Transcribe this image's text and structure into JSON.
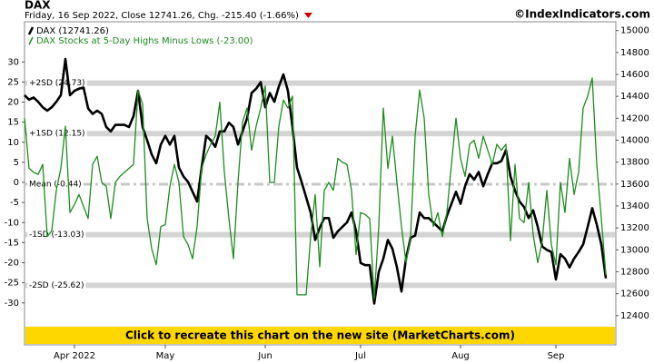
{
  "chart_data": {
    "type": "line",
    "title": "DAX",
    "subtitle": "Friday, 16 Sep 2022, Close 12741.26, Chg. -215.40 (-1.66%)",
    "source": "©IndexIndicators.com",
    "annotation": "Click to recreate this chart on the new site (MarketCharts.com)",
    "categories": [
      null,
      null,
      null,
      null,
      null,
      null,
      null,
      null,
      null,
      null,
      null,
      "Apr 2022",
      null,
      null,
      null,
      null,
      null,
      null,
      null,
      null,
      null,
      null,
      null,
      null,
      null,
      null,
      null,
      null,
      null,
      null,
      null,
      "May",
      null,
      null,
      null,
      null,
      null,
      null,
      null,
      null,
      null,
      null,
      null,
      null,
      null,
      null,
      null,
      null,
      null,
      null,
      null,
      null,
      null,
      "Jun",
      null,
      null,
      null,
      null,
      null,
      null,
      null,
      null,
      null,
      null,
      null,
      null,
      null,
      null,
      null,
      null,
      null,
      null,
      null,
      null,
      "Jul",
      null,
      null,
      null,
      null,
      null,
      null,
      null,
      null,
      null,
      null,
      null,
      null,
      null,
      null,
      null,
      null,
      null,
      null,
      null,
      null,
      null,
      "Aug",
      null,
      null,
      null,
      null,
      null,
      null,
      null,
      null,
      null,
      null,
      null,
      null,
      null,
      null,
      null,
      null,
      null,
      null,
      null,
      null,
      "Sep",
      null,
      null,
      null,
      null,
      null,
      null,
      null,
      null,
      null,
      null,
      null
    ],
    "series": [
      {
        "name": "DAX Stocks at 5-Day Highs Minus Lows (-23.00)",
        "color": "#1e8c1e",
        "axis": "y",
        "values": [
          16,
          3.5,
          2.5,
          2,
          4.5,
          -13.5,
          -12,
          -2,
          3.5,
          14,
          -7.5,
          -5.5,
          -3,
          -6,
          -9,
          4.5,
          6.5,
          0,
          -1,
          -9,
          0,
          1.5,
          2.5,
          3.5,
          4.5,
          23,
          19.5,
          -9,
          -16.5,
          -20.5,
          -11,
          -10.5,
          -1,
          4.5,
          0,
          -13.5,
          -15.5,
          -19,
          -11,
          3.5,
          7,
          9.5,
          11.5,
          20,
          2.5,
          -9,
          -19,
          0,
          15,
          18.5,
          8,
          14,
          18.5,
          24,
          0,
          0,
          14,
          20.5,
          18.5,
          21.5,
          -28,
          -28,
          -28,
          -13.5,
          -3,
          -21,
          -2,
          0,
          -2,
          6,
          5,
          4.5,
          -2,
          -18,
          -7.5,
          -8,
          -9,
          -29,
          -11,
          18.5,
          3.5,
          11.5,
          0,
          -11,
          -20,
          -13.5,
          11.5,
          23,
          16,
          -3,
          -11,
          -7.5,
          -13.5,
          -7.5,
          4.5,
          16,
          6,
          1.5,
          9.5,
          10.5,
          6,
          11.5,
          8,
          4.5,
          9.5,
          8,
          9.5,
          -14.5,
          4.5,
          -9,
          -10,
          0,
          -13,
          -20,
          -14.5,
          -2,
          -15.5,
          -20.5,
          0,
          -7.5,
          6,
          -3,
          2.5,
          18.5,
          21.5,
          26,
          4.5,
          -9,
          -23
        ]
      },
      {
        "name": "DAX (12741.26)",
        "color": "#000000",
        "axis": "y2",
        "values": [
          14410,
          14370,
          14390,
          14350,
          14300,
          14270,
          14300,
          14350,
          14410,
          14740,
          14410,
          14450,
          14470,
          14480,
          14290,
          14240,
          14270,
          14240,
          14120,
          14080,
          14140,
          14140,
          14140,
          14120,
          14220,
          14450,
          14120,
          14000,
          13870,
          13790,
          13960,
          14040,
          13960,
          14040,
          13750,
          13670,
          13620,
          13530,
          13440,
          13750,
          14040,
          14000,
          13940,
          14080,
          14080,
          14160,
          14120,
          13960,
          14080,
          14200,
          14430,
          14470,
          14530,
          14300,
          14430,
          14350,
          14490,
          14600,
          14450,
          14120,
          13750,
          13620,
          13480,
          13340,
          13090,
          13200,
          13290,
          13290,
          13110,
          13170,
          13210,
          13250,
          13340,
          13170,
          12880,
          12860,
          12860,
          12510,
          12800,
          12920,
          13090,
          13010,
          12840,
          12620,
          12920,
          13110,
          13130,
          13340,
          13290,
          13290,
          13250,
          13210,
          13170,
          13310,
          13420,
          13530,
          13420,
          13580,
          13690,
          13640,
          13710,
          13580,
          13690,
          13790,
          13790,
          13810,
          13910,
          13670,
          13540,
          13440,
          13390,
          13290,
          13360,
          13210,
          13030,
          13000,
          12980,
          12730,
          12960,
          12920,
          12840,
          12920,
          12980,
          13050,
          13210,
          13380,
          13230,
          13050,
          12740
        ]
      }
    ],
    "legend_order": [
      1,
      0
    ],
    "ylim": [
      -40,
      40
    ],
    "yticks": [
      -30,
      -25,
      -20,
      -15,
      -10,
      -5,
      0,
      5,
      10,
      15,
      20,
      25,
      30
    ],
    "y2lim": [
      12150,
      15080
    ],
    "y2ticks": [
      12400,
      12600,
      12800,
      13000,
      13200,
      13400,
      13600,
      13800,
      14000,
      14200,
      14400,
      14600,
      14800,
      15000
    ],
    "bands": [
      {
        "value": 24.73,
        "label": "+2SD (24.73)"
      },
      {
        "value": 12.15,
        "label": "+1SD (12.15)"
      },
      {
        "value": -0.44,
        "label": "Mean (-0.44)"
      },
      {
        "value": -13.03,
        "label": "-1SD (-13.03)"
      },
      {
        "value": -25.62,
        "label": "-2SD (-25.62)"
      }
    ]
  }
}
